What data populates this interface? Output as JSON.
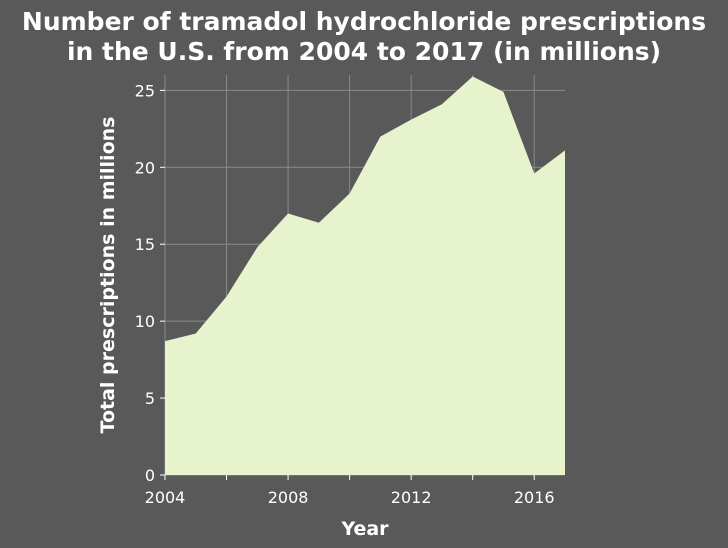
{
  "chart_data": {
    "type": "area",
    "title": "Number of tramadol hydrochloride prescriptions in the U.S. from 2004 to 2017 (in millions)",
    "title_lines": [
      "Number of tramadol hydrochloride prescriptions",
      "in the U.S. from 2004 to 2017 (in millions)"
    ],
    "xlabel": "Year",
    "ylabel": "Total prescriptions in millions",
    "xlim": [
      2004,
      2017
    ],
    "ylim": [
      0,
      26
    ],
    "x_ticks": [
      2004,
      2008,
      2012,
      2016
    ],
    "x_minor_ticks": [
      2006,
      2010,
      2014
    ],
    "y_ticks": [
      0,
      5,
      10,
      15,
      20,
      25
    ],
    "grid": true,
    "x": [
      2004,
      2005,
      2006,
      2007,
      2008,
      2009,
      2010,
      2011,
      2012,
      2013,
      2014,
      2015,
      2016,
      2017
    ],
    "series": [
      {
        "values": [
          8.7,
          9.2,
          11.6,
          14.8,
          17.0,
          16.4,
          18.3,
          22.0,
          23.1,
          24.1,
          25.9,
          24.9,
          19.6,
          21.1
        ]
      }
    ],
    "colors": {
      "background": "#595959",
      "fill": "#e6f3cd",
      "grid": "#8a8a8a",
      "text": "#ffffff"
    }
  }
}
